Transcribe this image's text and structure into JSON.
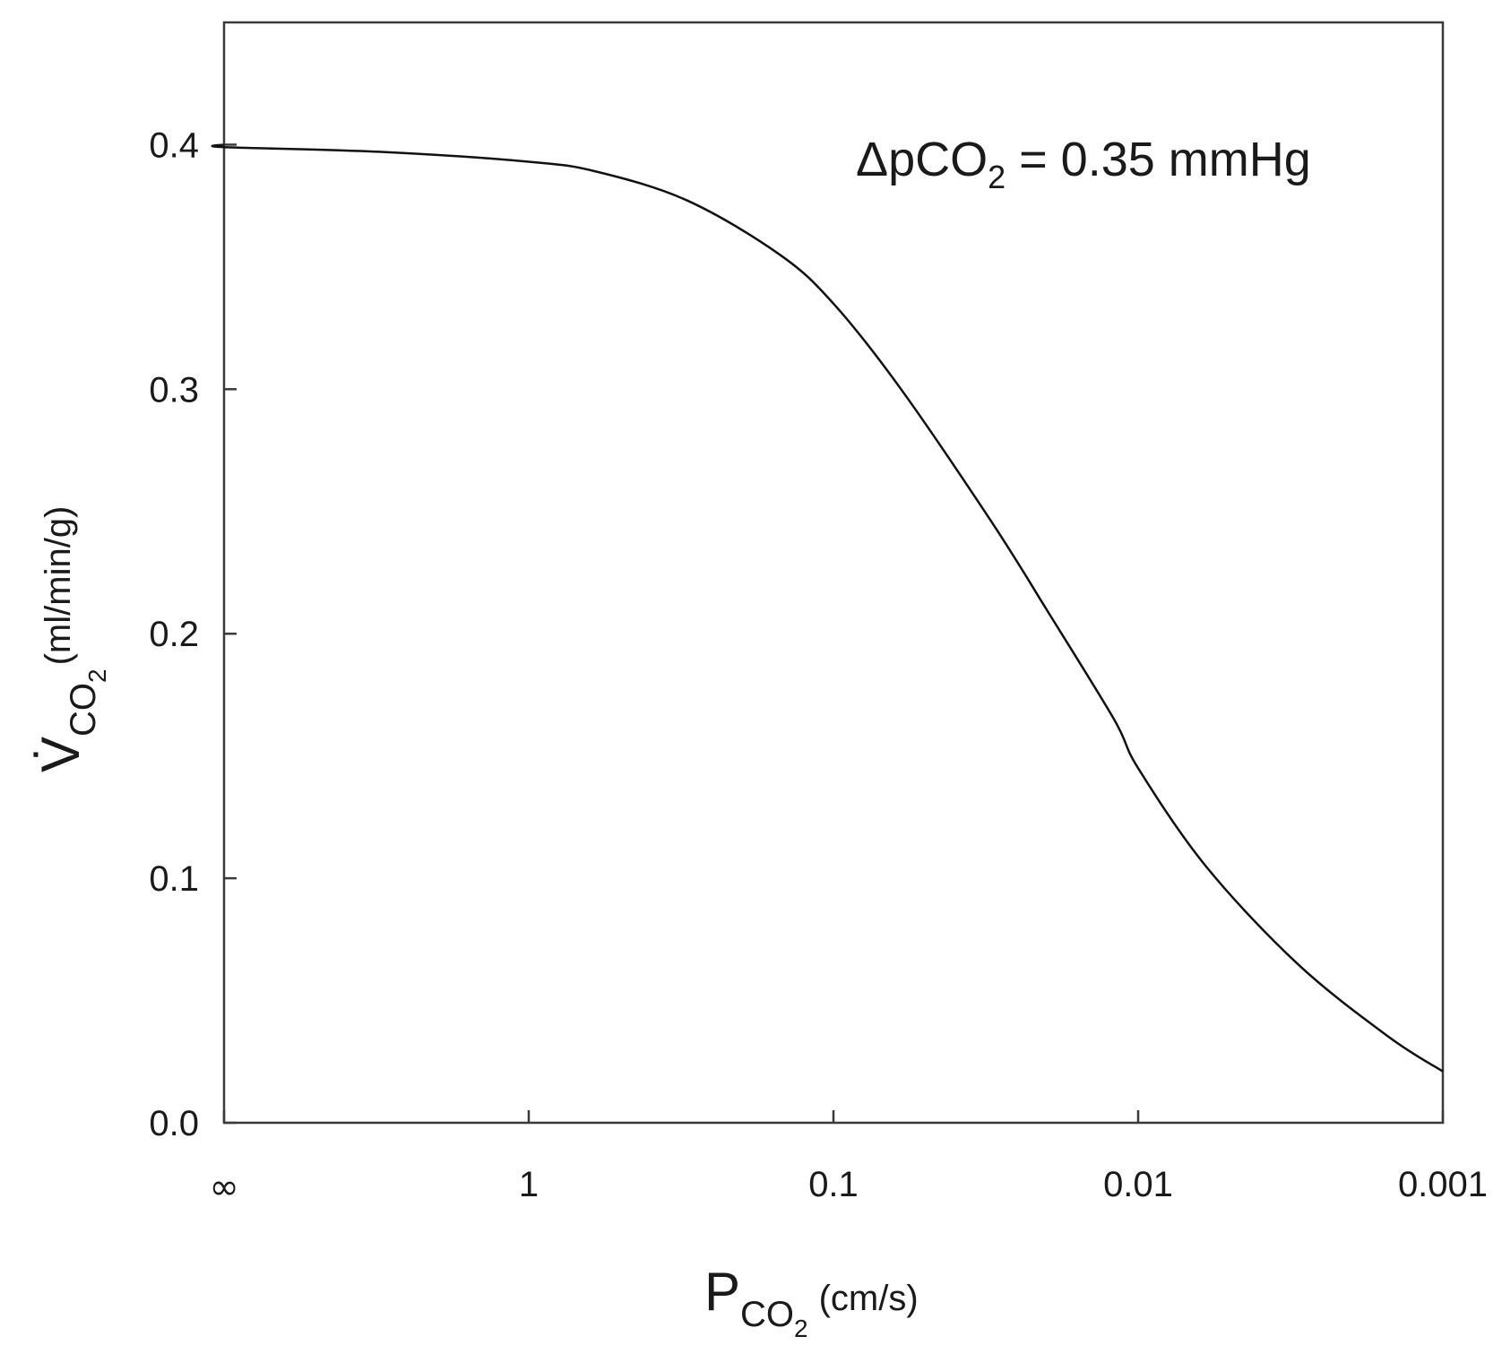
{
  "chart_data": {
    "type": "line",
    "annotation": {
      "delta_prefix": "ΔpCO",
      "subscript": "2",
      "rest": " = 0.35 mmHg"
    },
    "xlabel": {
      "main": "P",
      "sub": "CO",
      "sub2": "2",
      "unit": "(cm/s)"
    },
    "ylabel": {
      "main": "V̇",
      "sub": "CO",
      "sub2": "2",
      "unit": "(ml/min/g)"
    },
    "x_scale": "log-reciprocal",
    "x_ticks": [
      {
        "label": "∞",
        "value": "inf"
      },
      {
        "label": "1",
        "value": 1
      },
      {
        "label": "0.1",
        "value": 0.1
      },
      {
        "label": "0.01",
        "value": 0.01
      },
      {
        "label": "0.001",
        "value": 0.001
      }
    ],
    "y_ticks": [
      {
        "label": "0.0",
        "value": 0.0
      },
      {
        "label": "0.1",
        "value": 0.1
      },
      {
        "label": "0.2",
        "value": 0.2
      },
      {
        "label": "0.3",
        "value": 0.3
      },
      {
        "label": "0.4",
        "value": 0.4
      }
    ],
    "ylim": [
      0,
      0.45
    ],
    "grid": false,
    "series": [
      {
        "color": "#111111",
        "points": [
          {
            "x": "inf",
            "y": 0.4
          },
          {
            "x": 10,
            "y": 0.399
          },
          {
            "x": 3,
            "y": 0.397
          },
          {
            "x": 1,
            "y": 0.393
          },
          {
            "x": 0.6,
            "y": 0.389
          },
          {
            "x": 0.3,
            "y": 0.377
          },
          {
            "x": 0.15,
            "y": 0.355
          },
          {
            "x": 0.1,
            "y": 0.335
          },
          {
            "x": 0.06,
            "y": 0.3
          },
          {
            "x": 0.03,
            "y": 0.245
          },
          {
            "x": 0.02,
            "y": 0.21
          },
          {
            "x": 0.012,
            "y": 0.165
          },
          {
            "x": 0.01,
            "y": 0.145
          },
          {
            "x": 0.006,
            "y": 0.105
          },
          {
            "x": 0.003,
            "y": 0.065
          },
          {
            "x": 0.0015,
            "y": 0.035
          },
          {
            "x": 0.001,
            "y": 0.021
          }
        ]
      }
    ]
  }
}
